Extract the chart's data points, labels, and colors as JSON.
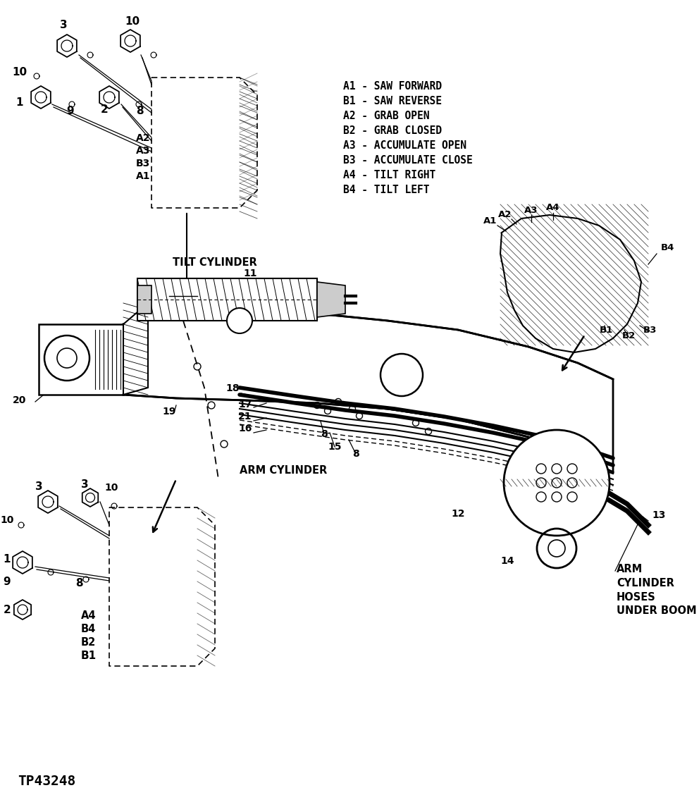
{
  "bg_color": "#ffffff",
  "legend_lines": [
    "A1 - SAW FORWARD",
    "B1 - SAW REVERSE",
    "A2 - GRAB OPEN",
    "B2 - GRAB CLOSED",
    "A3 - ACCUMULATE OPEN",
    "B3 - ACCUMULATE CLOSE",
    "A4 - TILT RIGHT",
    "B4 - TILT LEFT"
  ],
  "tp_label": "TP43248",
  "arm_cylinder_label": "ARM CYLINDER",
  "tilt_cylinder_label": "TILT CYLINDER",
  "arm_hoses_label": "ARM\nCYLINDER\nHOSES\nUNDER BOOM",
  "fig_width": 9.92,
  "fig_height": 11.45,
  "dpi": 100
}
